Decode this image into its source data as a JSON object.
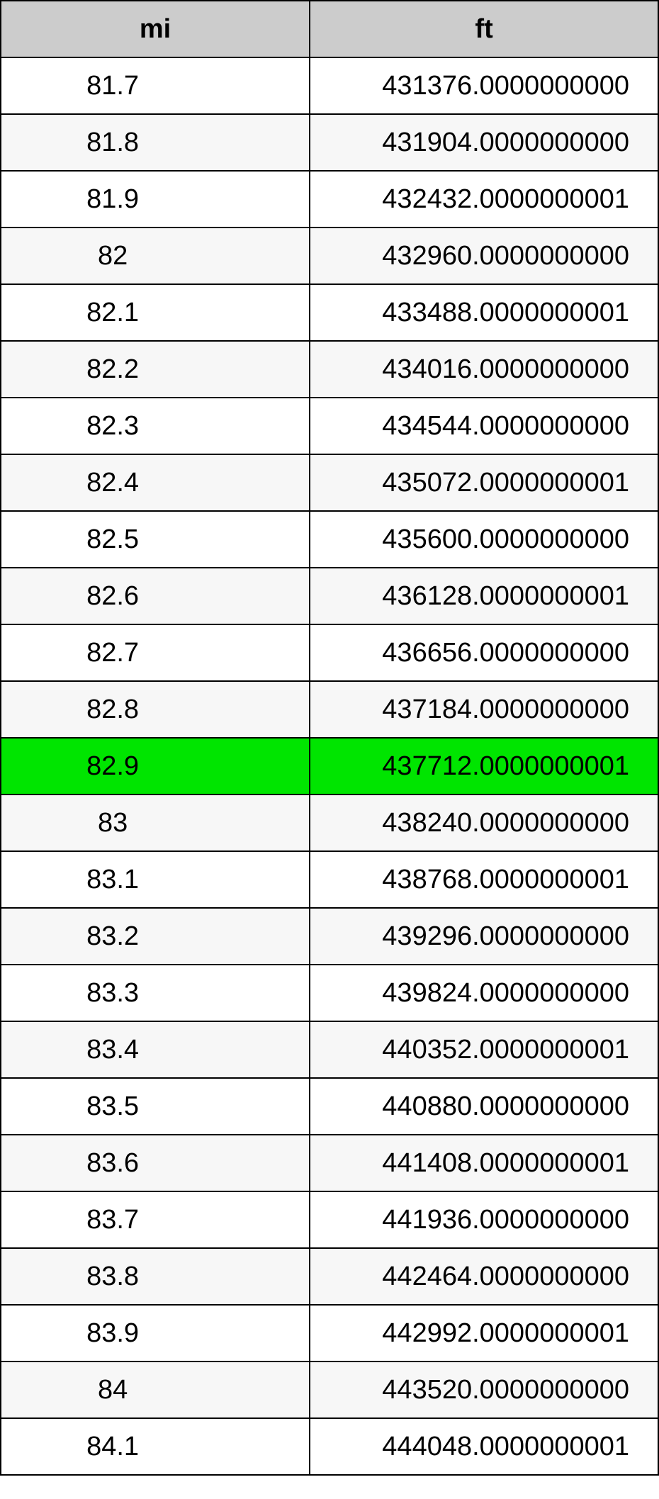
{
  "table": {
    "columns": [
      "mi",
      "ft"
    ],
    "highlight_index": 12,
    "header_bg": "#cccccc",
    "row_bg_odd": "#ffffff",
    "row_bg_even": "#f7f7f7",
    "highlight_bg": "#00e500",
    "border_color": "#000000",
    "font_size": 38,
    "rows": [
      {
        "mi": "81.7",
        "ft": "431376.0000000000"
      },
      {
        "mi": "81.8",
        "ft": "431904.0000000000"
      },
      {
        "mi": "81.9",
        "ft": "432432.0000000001"
      },
      {
        "mi": "82",
        "ft": "432960.0000000000"
      },
      {
        "mi": "82.1",
        "ft": "433488.0000000001"
      },
      {
        "mi": "82.2",
        "ft": "434016.0000000000"
      },
      {
        "mi": "82.3",
        "ft": "434544.0000000000"
      },
      {
        "mi": "82.4",
        "ft": "435072.0000000001"
      },
      {
        "mi": "82.5",
        "ft": "435600.0000000000"
      },
      {
        "mi": "82.6",
        "ft": "436128.0000000001"
      },
      {
        "mi": "82.7",
        "ft": "436656.0000000000"
      },
      {
        "mi": "82.8",
        "ft": "437184.0000000000"
      },
      {
        "mi": "82.9",
        "ft": "437712.0000000001"
      },
      {
        "mi": "83",
        "ft": "438240.0000000000"
      },
      {
        "mi": "83.1",
        "ft": "438768.0000000001"
      },
      {
        "mi": "83.2",
        "ft": "439296.0000000000"
      },
      {
        "mi": "83.3",
        "ft": "439824.0000000000"
      },
      {
        "mi": "83.4",
        "ft": "440352.0000000001"
      },
      {
        "mi": "83.5",
        "ft": "440880.0000000000"
      },
      {
        "mi": "83.6",
        "ft": "441408.0000000001"
      },
      {
        "mi": "83.7",
        "ft": "441936.0000000000"
      },
      {
        "mi": "83.8",
        "ft": "442464.0000000000"
      },
      {
        "mi": "83.9",
        "ft": "442992.0000000001"
      },
      {
        "mi": "84",
        "ft": "443520.0000000000"
      },
      {
        "mi": "84.1",
        "ft": "444048.0000000001"
      }
    ]
  }
}
